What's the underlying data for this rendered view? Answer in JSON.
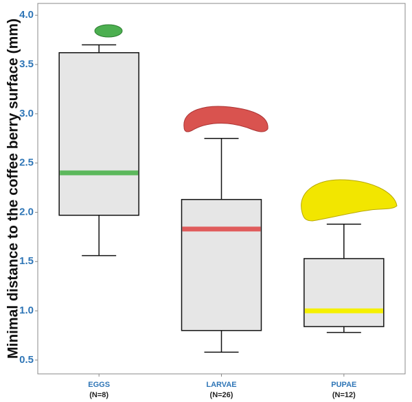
{
  "chart_data": {
    "type": "box",
    "y_label": "Minimal distance to the coffee berry surface (mm)",
    "categories": [
      "EGGS",
      "LARVAE",
      "PUPAE"
    ],
    "n_labels": [
      "(N=8)",
      "(N=26)",
      "(N=12)"
    ],
    "boxes": [
      {
        "whislo": 1.56,
        "q1": 1.97,
        "med": 2.4,
        "q3": 3.62,
        "whishi": 3.7,
        "color": "#5cb85c"
      },
      {
        "whislo": 0.58,
        "q1": 0.8,
        "med": 1.83,
        "q3": 2.13,
        "whishi": 2.75,
        "color": "#e05c5c"
      },
      {
        "whislo": 0.78,
        "q1": 0.84,
        "med": 1.0,
        "q3": 1.53,
        "whishi": 1.88,
        "color": "#f5f000"
      }
    ],
    "box_fill": "#e6e6e6",
    "ylim": [
      0.36,
      4.12
    ],
    "yticks": [
      0.5,
      {
        "value": 1,
        "label": "1.0"
      },
      1.5,
      {
        "value": 2,
        "label": "2.0"
      },
      2.5,
      {
        "value": 3,
        "label": "3.0"
      },
      3.5,
      {
        "value": 4,
        "label": "4.0"
      }
    ]
  }
}
